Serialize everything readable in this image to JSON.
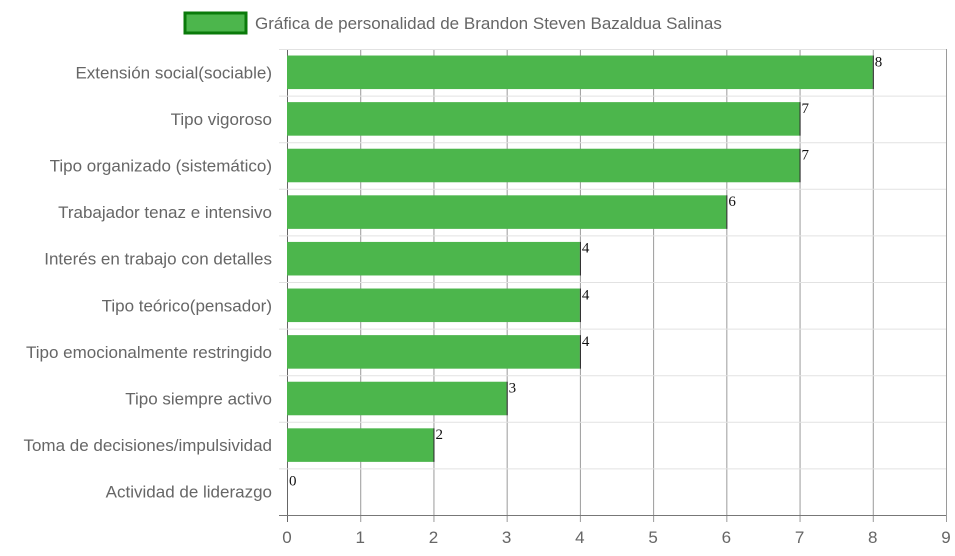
{
  "chart_data": {
    "type": "bar",
    "orientation": "horizontal",
    "title": "",
    "xlabel": "",
    "ylabel": "",
    "xlim": [
      0,
      9
    ],
    "x_ticks": [
      "0",
      "1",
      "2",
      "3",
      "4",
      "5",
      "6",
      "7",
      "8",
      "9"
    ],
    "grid": true,
    "legend_position": "top-center",
    "categories": [
      "Extensión social(sociable)",
      "Tipo vigoroso",
      "Tipo organizado (sistemático)",
      "Trabajador tenaz e intensivo",
      "Interés en trabajo con detalles",
      "Tipo teórico(pensador)",
      "Tipo emocionalmente restringido",
      "Tipo siempre activo",
      "Toma de decisiones/impulsividad",
      "Actividad de liderazgo"
    ],
    "series": [
      {
        "name": "Gráfica de personalidad de Brandon Steven Bazaldua Salinas",
        "values": [
          8,
          7,
          7,
          6,
          4,
          4,
          4,
          3,
          2,
          0
        ],
        "value_labels": [
          "8",
          "7",
          "7",
          "6",
          "4",
          "4",
          "4",
          "3",
          "2",
          "0"
        ],
        "color": "#4cb64c",
        "border_color": "#0a7a0a"
      }
    ]
  }
}
